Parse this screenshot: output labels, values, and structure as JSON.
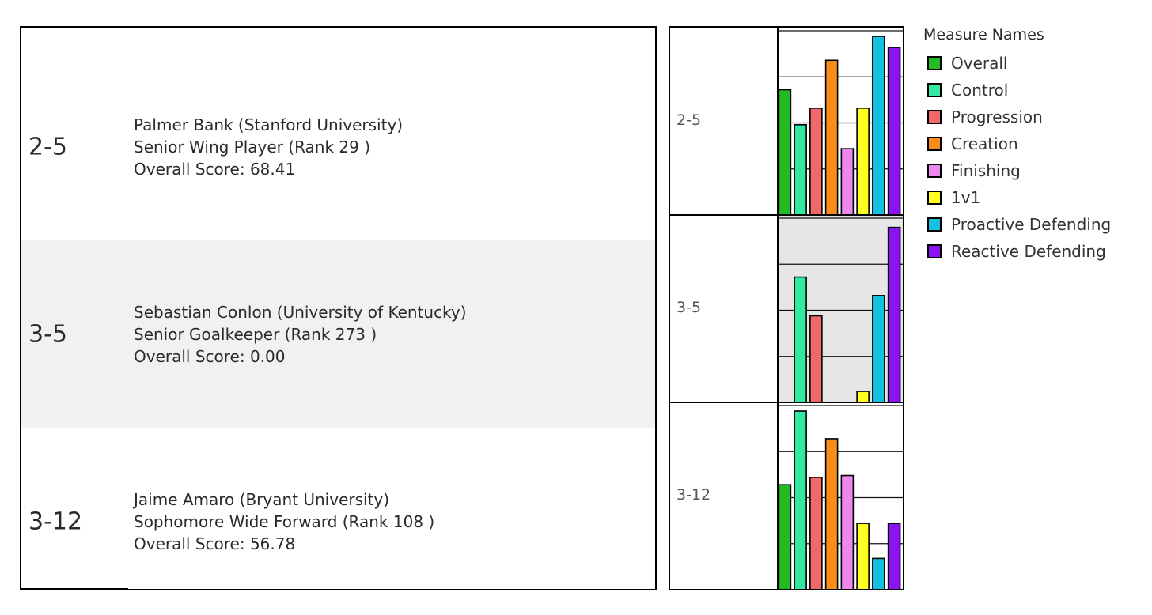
{
  "table": {
    "rows": [
      {
        "seed": "2-5",
        "player_line": "Palmer Bank (Stanford University)",
        "position_line": "Senior Wing Player  (Rank 29 )",
        "score_line": "Overall Score: 68.41"
      },
      {
        "seed": "3-5",
        "player_line": "Sebastian Conlon (University of Kentucky)",
        "position_line": "Senior Goalkeeper  (Rank 273 )",
        "score_line": "Overall Score: 0.00"
      },
      {
        "seed": "3-12",
        "player_line": "Jaime Amaro (Bryant University)",
        "position_line": "Sophomore Wide Forward  (Rank 108 )",
        "score_line": "Overall Score: 56.78"
      }
    ]
  },
  "legend": {
    "title": "Measure Names"
  },
  "chart_data": {
    "type": "bar",
    "title": "",
    "xlabel": "",
    "ylabel": "",
    "ylim": [
      0,
      100
    ],
    "grid": true,
    "legend_position": "right",
    "facets": [
      "2-5",
      "3-5",
      "3-12"
    ],
    "categories": [
      "Overall",
      "Control",
      "Progression",
      "Creation",
      "Finishing",
      "1v1",
      "Proactive Defending",
      "Reactive Defending"
    ],
    "colors": [
      "#22bb22",
      "#33e8a0",
      "#f06868",
      "#fa8c1a",
      "#ee88ee",
      "#ffff22",
      "#14bfe0",
      "#8a14f0"
    ],
    "series": [
      {
        "name": "2-5",
        "values": [
          68,
          49,
          58,
          84,
          36,
          58,
          97,
          91
        ]
      },
      {
        "name": "3-5",
        "values": [
          0,
          68,
          47,
          0,
          0,
          6,
          58,
          95
        ]
      },
      {
        "name": "3-12",
        "values": [
          57,
          97,
          61,
          82,
          62,
          36,
          17,
          36
        ]
      }
    ]
  }
}
